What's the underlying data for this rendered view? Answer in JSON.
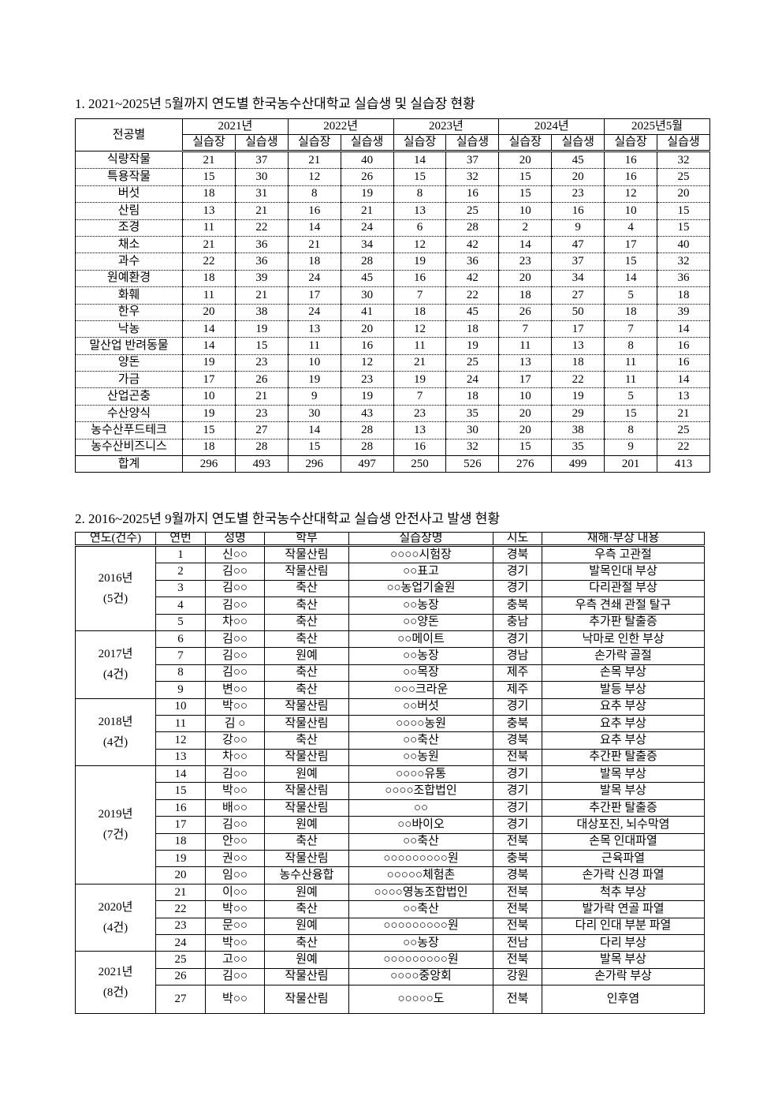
{
  "section1": {
    "title": "1. 2021~2025년 5월까지 연도별 한국농수산대학교 실습생 및 실습장 현황",
    "corner_header": "전공별",
    "years": [
      "2021년",
      "2022년",
      "2023년",
      "2024년",
      "2025년5월"
    ],
    "sub_headers": [
      "실습장",
      "실습생"
    ],
    "rows": [
      {
        "major": "식량작물",
        "values": [
          21,
          37,
          21,
          40,
          14,
          37,
          20,
          45,
          16,
          32
        ]
      },
      {
        "major": "특용작물",
        "values": [
          15,
          30,
          12,
          26,
          15,
          32,
          15,
          20,
          16,
          25
        ]
      },
      {
        "major": "버섯",
        "values": [
          18,
          31,
          8,
          19,
          8,
          16,
          15,
          23,
          12,
          20
        ]
      },
      {
        "major": "산림",
        "values": [
          13,
          21,
          16,
          21,
          13,
          25,
          10,
          16,
          10,
          15
        ]
      },
      {
        "major": "조경",
        "values": [
          11,
          22,
          14,
          24,
          6,
          28,
          2,
          9,
          4,
          15
        ]
      },
      {
        "major": "채소",
        "values": [
          21,
          36,
          21,
          34,
          12,
          42,
          14,
          47,
          17,
          40
        ]
      },
      {
        "major": "과수",
        "values": [
          22,
          36,
          18,
          28,
          19,
          36,
          23,
          37,
          15,
          32
        ]
      },
      {
        "major": "원예환경",
        "values": [
          18,
          39,
          24,
          45,
          16,
          42,
          20,
          34,
          14,
          36
        ]
      },
      {
        "major": "화훼",
        "values": [
          11,
          21,
          17,
          30,
          7,
          22,
          18,
          27,
          5,
          18
        ]
      },
      {
        "major": "한우",
        "values": [
          20,
          38,
          24,
          41,
          18,
          45,
          26,
          50,
          18,
          39
        ]
      },
      {
        "major": "낙농",
        "values": [
          14,
          19,
          13,
          20,
          12,
          18,
          7,
          17,
          7,
          14
        ]
      },
      {
        "major": "말산업 반려동물",
        "values": [
          14,
          15,
          11,
          16,
          11,
          19,
          11,
          13,
          8,
          16
        ]
      },
      {
        "major": "양돈",
        "values": [
          19,
          23,
          10,
          12,
          21,
          25,
          13,
          18,
          11,
          16
        ]
      },
      {
        "major": "가금",
        "values": [
          17,
          26,
          19,
          23,
          19,
          24,
          17,
          22,
          11,
          14
        ]
      },
      {
        "major": "산업곤충",
        "values": [
          10,
          21,
          9,
          19,
          7,
          18,
          10,
          19,
          5,
          13
        ]
      },
      {
        "major": "수산양식",
        "values": [
          19,
          23,
          30,
          43,
          23,
          35,
          20,
          29,
          15,
          21
        ]
      },
      {
        "major": "농수산푸드테크",
        "values": [
          15,
          27,
          14,
          28,
          13,
          30,
          20,
          38,
          8,
          25
        ]
      },
      {
        "major": "농수산비즈니스",
        "values": [
          18,
          28,
          15,
          28,
          16,
          32,
          15,
          35,
          9,
          22
        ]
      }
    ],
    "total": {
      "major": "합계",
      "values": [
        296,
        493,
        296,
        497,
        250,
        526,
        276,
        499,
        201,
        413
      ]
    }
  },
  "section2": {
    "title": "2. 2016~2025년 9월까지 연도별 한국농수산대학교 실습생 안전사고 발생 현황",
    "headers": [
      "연도(건수)",
      "연번",
      "성명",
      "학부",
      "실습장명",
      "시도",
      "재해·부상 내용"
    ],
    "groups": [
      {
        "year": "2016년\n(5건)",
        "rows": [
          [
            "1",
            "신○○",
            "작물산림",
            "○○○○시험장",
            "경북",
            "우측 고관절"
          ],
          [
            "2",
            "김○○",
            "작물산림",
            "○○표고",
            "경기",
            "발목인대 부상"
          ],
          [
            "3",
            "김○○",
            "축산",
            "○○농업기술원",
            "경기",
            "다리관절 부상"
          ],
          [
            "4",
            "김○○",
            "축산",
            "○○농장",
            "충북",
            "우측 견쇄 관절 탈구"
          ],
          [
            "5",
            "차○○",
            "축산",
            "○○양돈",
            "충남",
            "추가판 탈출증"
          ]
        ]
      },
      {
        "year": "2017년\n(4건)",
        "rows": [
          [
            "6",
            "김○○",
            "축산",
            "○○메이트",
            "경기",
            "낙마로 인한 부상"
          ],
          [
            "7",
            "김○○",
            "원예",
            "○○농장",
            "경남",
            "손가락 골절"
          ],
          [
            "8",
            "김○○",
            "축산",
            "○○목장",
            "제주",
            "손목 부상"
          ],
          [
            "9",
            "변○○",
            "축산",
            "○○○크라운",
            "제주",
            "발등 부상"
          ]
        ]
      },
      {
        "year": "2018년\n(4건)",
        "rows": [
          [
            "10",
            "박○○",
            "작물산림",
            "○○버섯",
            "경기",
            "요추 부상"
          ],
          [
            "11",
            "김  ○",
            "작물산림",
            "○○○○농원",
            "충북",
            "요추 부상"
          ],
          [
            "12",
            "강○○",
            "축산",
            "○○축산",
            "경북",
            "요추 부상"
          ],
          [
            "13",
            "차○○",
            "작물산림",
            "○○농원",
            "전북",
            "추간판 탈출증"
          ]
        ]
      },
      {
        "year": "2019년\n(7건)",
        "rows": [
          [
            "14",
            "김○○",
            "원예",
            "○○○○유통",
            "경기",
            "발목 부상"
          ],
          [
            "15",
            "박○○",
            "작물산림",
            "○○○○조합법인",
            "경기",
            "발목 부상"
          ],
          [
            "16",
            "배○○",
            "작물산림",
            "○○",
            "경기",
            "추간판 탈출증"
          ],
          [
            "17",
            "김○○",
            "원예",
            "○○바이오",
            "경기",
            "대상포진, 뇌수막염"
          ],
          [
            "18",
            "안○○",
            "축산",
            "○○축산",
            "전북",
            "손목 인대파열"
          ],
          [
            "19",
            "권○○",
            "작물산림",
            "○○○○○○○○○원",
            "충북",
            "근육파열"
          ],
          [
            "20",
            "임○○",
            "농수산융합",
            "○○○○○체험촌",
            "경북",
            "손가락 신경 파열"
          ]
        ]
      },
      {
        "year": "2020년\n(4건)",
        "rows": [
          [
            "21",
            "이○○",
            "원예",
            "○○○○영농조합법인",
            "전북",
            "척추 부상"
          ],
          [
            "22",
            "박○○",
            "축산",
            "○○축산",
            "전북",
            "발가락 연골 파열"
          ],
          [
            "23",
            "문○○",
            "원예",
            "○○○○○○○○○원",
            "전북",
            "다리 인대 부분 파열"
          ],
          [
            "24",
            "박○○",
            "축산",
            "○○농장",
            "전남",
            "다리 부상"
          ]
        ]
      },
      {
        "year": "2021년\n(8건)",
        "rows": [
          [
            "25",
            "고○○",
            "원예",
            "○○○○○○○○○원",
            "전북",
            "발목 부상"
          ],
          [
            "26",
            "김○○",
            "작물산림",
            "○○○○중앙회",
            "강원",
            "손가락 부상"
          ],
          [
            "27",
            "박○○",
            "작물산림",
            "○○○○○도",
            "전북",
            "인후염"
          ]
        ]
      }
    ]
  }
}
